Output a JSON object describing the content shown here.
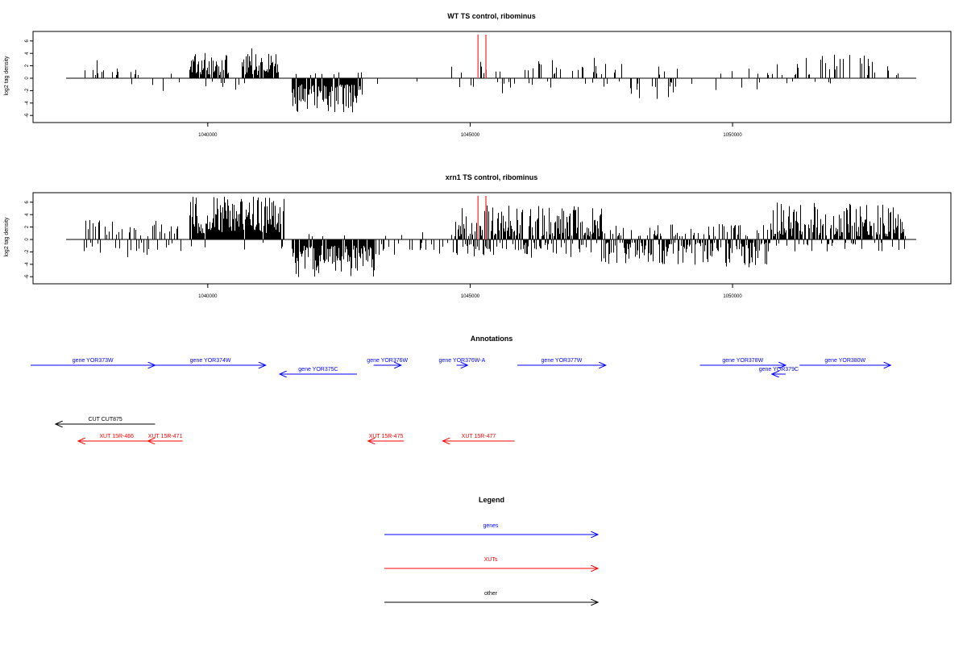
{
  "chart_data": [
    {
      "type": "bar",
      "title": "WT TS control, ribominus",
      "ylabel": "log2 tag density",
      "xlim": [
        1037300,
        1053500
      ],
      "ylim": [
        -7,
        7.5
      ],
      "yticks": [
        -6,
        -4,
        -2,
        0,
        2,
        4,
        6
      ],
      "xticks": [
        1040000,
        1045000,
        1050000
      ],
      "xtick_labels": [
        "1040000",
        "1045000",
        "1050000"
      ],
      "highlight_x": [
        1045150,
        1045300
      ],
      "highlight_color": "#ff5a5a",
      "bar_color": "#000000",
      "series": [
        {
          "x_start": 1037630,
          "x_end": 1038800,
          "density": 0.3,
          "min": 0.5,
          "max": 3.0,
          "neg_min": 0.5,
          "neg_max": 1.0,
          "neg_prob": 0.05
        },
        {
          "x_start": 1038800,
          "x_end": 1039500,
          "density": 0.1,
          "min": 0.5,
          "max": 2.0,
          "neg_min": 0.5,
          "neg_max": 2.5,
          "neg_prob": 0.5
        },
        {
          "x_start": 1039650,
          "x_end": 1040400,
          "density": 0.9,
          "min": 0.5,
          "max": 4.3,
          "neg_min": 0.5,
          "neg_max": 1.5,
          "neg_prob": 0.05
        },
        {
          "x_start": 1040400,
          "x_end": 1040650,
          "density": 0.15,
          "min": 0.5,
          "max": 2.0,
          "neg_min": 0.5,
          "neg_max": 2.5,
          "neg_prob": 0.4
        },
        {
          "x_start": 1040650,
          "x_end": 1041350,
          "density": 0.8,
          "min": 0.5,
          "max": 4.8,
          "neg_min": 0.5,
          "neg_max": 1.0,
          "neg_prob": 0.03
        },
        {
          "x_start": 1041600,
          "x_end": 1042950,
          "density": 0.95,
          "min": 0.5,
          "max": 1.0,
          "neg_min": 1.0,
          "neg_max": 5.5,
          "neg_prob": 0.96
        },
        {
          "x_start": 1043200,
          "x_end": 1044500,
          "density": 0.02,
          "min": 0.5,
          "max": 1.0,
          "neg_min": 0.5,
          "neg_max": 1.0,
          "neg_prob": 0.8
        },
        {
          "x_start": 1044600,
          "x_end": 1045600,
          "density": 0.15,
          "min": 0.5,
          "max": 3.5,
          "neg_min": 0.5,
          "neg_max": 1.5,
          "neg_prob": 0.2
        },
        {
          "x_start": 1045600,
          "x_end": 1047000,
          "density": 0.2,
          "min": 0.5,
          "max": 3.0,
          "neg_min": 0.5,
          "neg_max": 2.5,
          "neg_prob": 0.35
        },
        {
          "x_start": 1047000,
          "x_end": 1048000,
          "density": 0.25,
          "min": 0.5,
          "max": 3.5,
          "neg_min": 0.5,
          "neg_max": 1.5,
          "neg_prob": 0.25
        },
        {
          "x_start": 1048000,
          "x_end": 1049000,
          "density": 0.3,
          "min": 0.5,
          "max": 2.0,
          "neg_min": 0.5,
          "neg_max": 3.5,
          "neg_prob": 0.7
        },
        {
          "x_start": 1049000,
          "x_end": 1050700,
          "density": 0.1,
          "min": 0.5,
          "max": 2.0,
          "neg_min": 0.5,
          "neg_max": 2.5,
          "neg_prob": 0.45
        },
        {
          "x_start": 1050700,
          "x_end": 1052700,
          "density": 0.25,
          "min": 0.5,
          "max": 3.8,
          "neg_min": 0.5,
          "neg_max": 1.0,
          "neg_prob": 0.08
        },
        {
          "x_start": 1052700,
          "x_end": 1053300,
          "density": 0.1,
          "min": 0.5,
          "max": 2.0,
          "neg_min": 0.5,
          "neg_max": 1.0,
          "neg_prob": 0.1
        }
      ]
    },
    {
      "type": "bar",
      "title": "xrn1 TS control, ribominus",
      "ylabel": "log2 tag density",
      "xlim": [
        1037300,
        1053500
      ],
      "ylim": [
        -7,
        7.5
      ],
      "yticks": [
        -6,
        -4,
        -2,
        0,
        2,
        4,
        6
      ],
      "xticks": [
        1040000,
        1045000,
        1050000
      ],
      "xtick_labels": [
        "1040000",
        "1045000",
        "1050000"
      ],
      "highlight_x": [
        1045150,
        1045300
      ],
      "highlight_color": "#ff5a5a",
      "bar_color": "#000000",
      "series": [
        {
          "x_start": 1037630,
          "x_end": 1039500,
          "density": 0.5,
          "min": 0.5,
          "max": 3.2,
          "neg_min": 0.5,
          "neg_max": 3.0,
          "neg_prob": 0.4
        },
        {
          "x_start": 1039650,
          "x_end": 1041450,
          "density": 1.0,
          "min": 1.0,
          "max": 7.0,
          "neg_min": 0.5,
          "neg_max": 2.5,
          "neg_prob": 0.05
        },
        {
          "x_start": 1041600,
          "x_end": 1043200,
          "density": 0.9,
          "min": 0.5,
          "max": 1.0,
          "neg_min": 1.0,
          "neg_max": 6.4,
          "neg_prob": 0.95
        },
        {
          "x_start": 1043200,
          "x_end": 1044700,
          "density": 0.2,
          "min": 0.5,
          "max": 1.5,
          "neg_min": 0.5,
          "neg_max": 2.5,
          "neg_prob": 0.6
        },
        {
          "x_start": 1044700,
          "x_end": 1047500,
          "density": 1.0,
          "min": 0.5,
          "max": 5.5,
          "neg_min": 0.5,
          "neg_max": 3.0,
          "neg_prob": 0.25
        },
        {
          "x_start": 1047500,
          "x_end": 1050700,
          "density": 0.9,
          "min": 0.5,
          "max": 2.5,
          "neg_min": 0.5,
          "neg_max": 4.5,
          "neg_prob": 0.65
        },
        {
          "x_start": 1050700,
          "x_end": 1053300,
          "density": 0.95,
          "min": 0.5,
          "max": 6.0,
          "neg_min": 0.5,
          "neg_max": 2.0,
          "neg_prob": 0.2
        }
      ]
    }
  ],
  "annotations": {
    "title": "Annotations",
    "xlim": [
      1037300,
      1053500
    ],
    "rows": [
      {
        "start": 1037300,
        "end": 1039550,
        "strand": "+",
        "label": "gene YOR373W",
        "color": "#0000ff",
        "level": 0
      },
      {
        "start": 1039550,
        "end": 1041550,
        "strand": "+",
        "label": "gene YOR374W",
        "color": "#0000ff",
        "level": 0
      },
      {
        "start": 1041800,
        "end": 1043200,
        "strand": "-",
        "label": "gene YOR375C",
        "color": "#0000ff",
        "level": 1
      },
      {
        "start": 1043500,
        "end": 1044000,
        "strand": "+",
        "label": "gene YOR376W",
        "color": "#0000ff",
        "level": 0
      },
      {
        "start": 1045000,
        "end": 1045200,
        "strand": "+",
        "label": "gene YOR376W-A",
        "color": "#0000ff",
        "level": 0
      },
      {
        "start": 1046100,
        "end": 1047700,
        "strand": "+",
        "label": "gene YOR377W",
        "color": "#0000ff",
        "level": 0
      },
      {
        "start": 1049400,
        "end": 1050950,
        "strand": "+",
        "label": "gene YOR378W",
        "color": "#0000ff",
        "level": 0
      },
      {
        "start": 1050700,
        "end": 1050950,
        "strand": "-",
        "label": "gene YOR379C",
        "color": "#0000ff",
        "level": 1
      },
      {
        "start": 1051200,
        "end": 1052850,
        "strand": "+",
        "label": "gene YOR380W",
        "color": "#0000ff",
        "level": 0
      },
      {
        "start": 1037750,
        "end": 1039550,
        "strand": "-",
        "label": "CUT CUT875",
        "color": "#000000",
        "level": 2
      },
      {
        "start": 1038160,
        "end": 1039550,
        "strand": "-",
        "label": "XUT 15R-466",
        "color": "#ff0000",
        "level": 3
      },
      {
        "start": 1039420,
        "end": 1040050,
        "strand": "-",
        "label": "XUT 15R-471",
        "color": "#ff0000",
        "level": 3
      },
      {
        "start": 1043400,
        "end": 1044050,
        "strand": "-",
        "label": "XUT 15R-475",
        "color": "#ff0000",
        "level": 3
      },
      {
        "start": 1044750,
        "end": 1046050,
        "strand": "-",
        "label": "XUT 15R-477",
        "color": "#ff0000",
        "level": 3
      }
    ]
  },
  "legend": {
    "title": "Legend",
    "items": [
      {
        "label": "genes",
        "color": "#0000ff"
      },
      {
        "label": "XUTs",
        "color": "#ff0000"
      },
      {
        "label": "other",
        "color": "#000000"
      }
    ]
  }
}
